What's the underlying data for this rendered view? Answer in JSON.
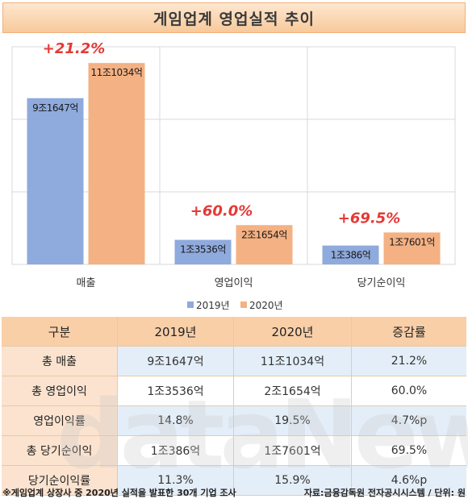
{
  "title": "게임업계 영업실적 추이",
  "chart_data": {
    "type": "bar",
    "categories": [
      "매출",
      "영업이익",
      "당기순이익"
    ],
    "series": [
      {
        "name": "2019년",
        "color": "#8faadc",
        "values": [
          9.1647,
          1.3536,
          1.0386
        ],
        "labels": [
          "9조1647억",
          "1조3536억",
          "1조386억"
        ]
      },
      {
        "name": "2020년",
        "color": "#f4b183",
        "values": [
          11.1034,
          2.1654,
          1.7601
        ],
        "labels": [
          "11조1034억",
          "2조1654억",
          "1조7601억"
        ]
      }
    ],
    "growth_labels": [
      "+21.2%",
      "+60.0%",
      "+69.5%"
    ],
    "growth_color": "#e53935",
    "ylim": [
      0,
      12
    ],
    "grid": true,
    "legend": "bottom"
  },
  "table": {
    "headers": [
      "구분",
      "2019년",
      "2020년",
      "증감률"
    ],
    "rows": [
      [
        "총 매출",
        "9조1647억",
        "11조1034억",
        "21.2%"
      ],
      [
        "총 영업이익",
        "1조3536억",
        "2조1654억",
        "60.0%"
      ],
      [
        "영업이익률",
        "14.8%",
        "19.5%",
        "4.7%p"
      ],
      [
        "총 당기순이익",
        "1조386억",
        "1조7601억",
        "69.5%"
      ],
      [
        "당기순이익률",
        "11.3%",
        "15.9%",
        "4.6%p"
      ]
    ]
  },
  "footer": {
    "note": "※게임업계 상장사 중 2020년 실적을 발표한 30개 기업 조사",
    "source": "자료:금융감독원 전자공시시스템 / 단위: 원"
  },
  "watermark": "dataNews"
}
